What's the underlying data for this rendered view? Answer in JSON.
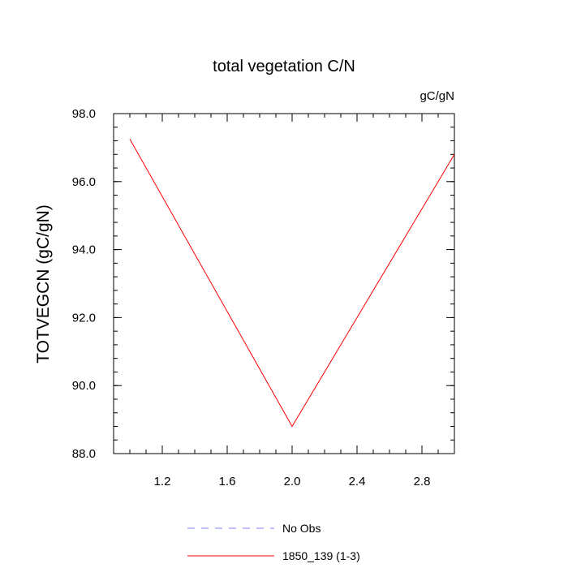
{
  "chart_data": {
    "type": "line",
    "title": "total vegetation C/N",
    "units_label": "gC/gN",
    "ylabel": "TOTVEGCN  (gC/gN)",
    "xlabel": "",
    "xlim": [
      0.9,
      3.0
    ],
    "ylim": [
      88.0,
      98.0
    ],
    "x_ticks": [
      1.2,
      1.6,
      2.0,
      2.4,
      2.8
    ],
    "x_tick_labels": [
      "1.2",
      "1.6",
      "2.0",
      "2.4",
      "2.8"
    ],
    "y_ticks": [
      88.0,
      90.0,
      92.0,
      94.0,
      96.0,
      98.0
    ],
    "y_tick_labels": [
      "88.0",
      "90.0",
      "92.0",
      "94.0",
      "96.0",
      "98.0"
    ],
    "grid": false,
    "legend_position": "bottom",
    "series": [
      {
        "name": "1850_139 (1-3)",
        "color": "#ff0000",
        "dash": "solid",
        "x": [
          1.0,
          2.0,
          3.0
        ],
        "y": [
          97.25,
          88.8,
          96.8
        ]
      }
    ],
    "legend": [
      {
        "label": "No Obs",
        "color": "#8080ff",
        "dash": "dashed"
      },
      {
        "label": "1850_139 (1-3)",
        "color": "#ff0000",
        "dash": "solid"
      }
    ]
  }
}
